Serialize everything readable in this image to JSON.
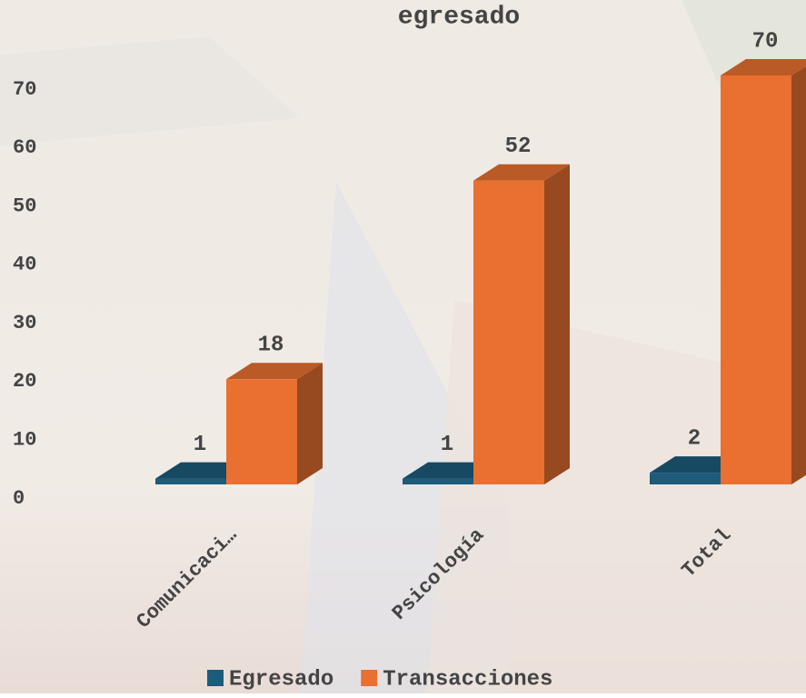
{
  "chart_data": {
    "type": "bar3d",
    "title": "egresado",
    "categories": [
      "Comunicaci…",
      "Psicología",
      "Total"
    ],
    "series": [
      {
        "name": "Egresado",
        "color": "#1d5b7b",
        "values": [
          1,
          1,
          2
        ]
      },
      {
        "name": "Transacciones",
        "color": "#e97030",
        "values": [
          18,
          52,
          70
        ]
      }
    ],
    "ylim": [
      0,
      70
    ],
    "yticks": [
      0,
      10,
      20,
      30,
      40,
      50,
      60,
      70
    ],
    "legend": "bottom"
  }
}
